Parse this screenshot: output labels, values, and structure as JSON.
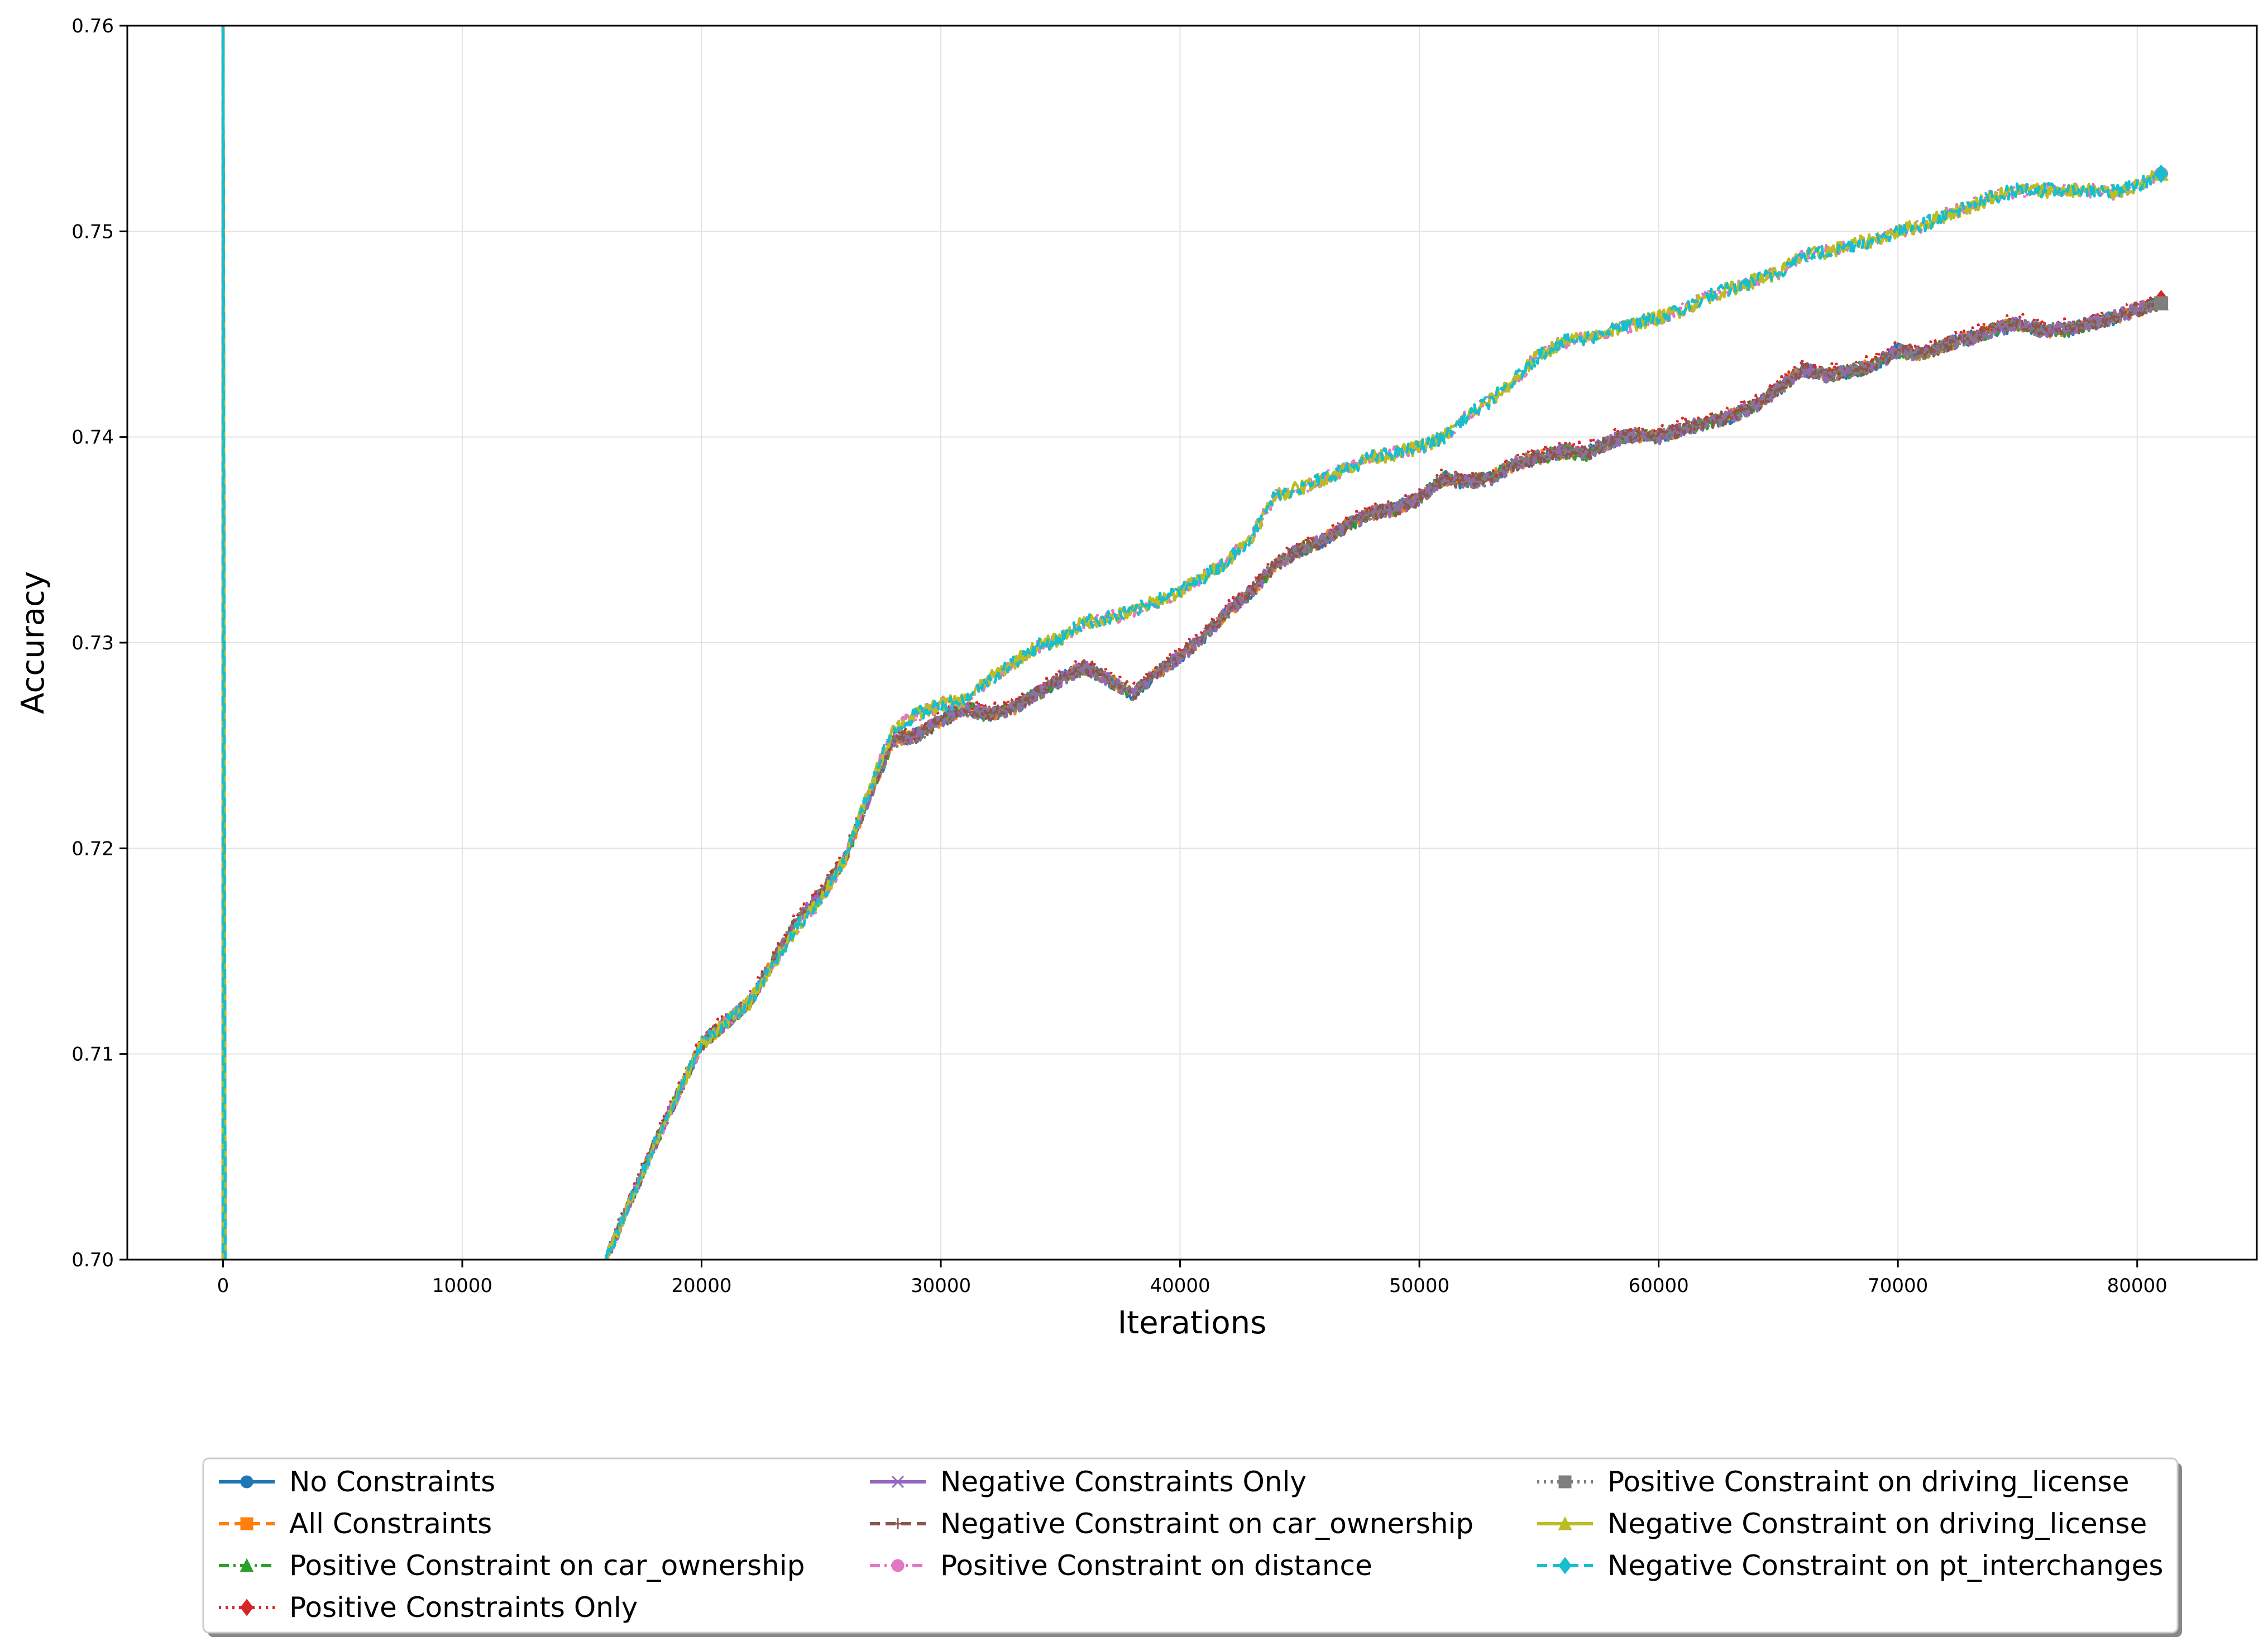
{
  "chart_data": {
    "type": "line",
    "title": "",
    "xlabel": "Iterations",
    "ylabel": "Accuracy",
    "xlim": [
      -4000,
      85000
    ],
    "ylim": [
      0.7,
      0.76
    ],
    "x_ticks": [
      0,
      10000,
      20000,
      30000,
      40000,
      50000,
      60000,
      70000,
      80000
    ],
    "x_tick_labels": [
      "0",
      "10000",
      "20000",
      "30000",
      "40000",
      "50000",
      "60000",
      "70000",
      "80000"
    ],
    "y_ticks": [
      0.7,
      0.71,
      0.72,
      0.73,
      0.74,
      0.75,
      0.76
    ],
    "y_tick_labels": [
      "0.70",
      "0.71",
      "0.72",
      "0.73",
      "0.74",
      "0.75",
      "0.76"
    ],
    "grid": true,
    "legend_position": "bottom-center, outside plot, 3 columns",
    "series": [
      {
        "name": "No Constraints",
        "color": "#1f77b4",
        "dash": "solid",
        "marker": "circle",
        "group": "A"
      },
      {
        "name": "All Constraints",
        "color": "#ff7f0e",
        "dash": "dashed",
        "marker": "square",
        "group": "A"
      },
      {
        "name": "Positive Constraint on car_ownership",
        "color": "#2ca02c",
        "dash": "dashdot",
        "marker": "triangle",
        "group": "A"
      },
      {
        "name": "Positive Constraints Only",
        "color": "#d62728",
        "dash": "dotted",
        "marker": "diamond",
        "group": "A"
      },
      {
        "name": "Negative Constraints Only",
        "color": "#9467bd",
        "dash": "solid",
        "marker": "x",
        "group": "A"
      },
      {
        "name": "Negative Constraint on car_ownership",
        "color": "#8c564b",
        "dash": "dashed",
        "marker": "plus",
        "group": "A"
      },
      {
        "name": "Positive Constraint on distance",
        "color": "#e377c2",
        "dash": "dashdot",
        "marker": "circle",
        "group": "B"
      },
      {
        "name": "Positive Constraint on driving_license",
        "color": "#7f7f7f",
        "dash": "dotted",
        "marker": "square",
        "group": "A"
      },
      {
        "name": "Negative Constraint on driving_license",
        "color": "#bcbd22",
        "dash": "solid",
        "marker": "triangle",
        "group": "B"
      },
      {
        "name": "Negative Constraint on pt_interchanges",
        "color": "#17becf",
        "dash": "dashed",
        "marker": "diamond",
        "group": "B"
      }
    ],
    "group_curves": {
      "A": {
        "x": [
          16000,
          18000,
          20000,
          22000,
          24000,
          25000,
          26000,
          27000,
          28000,
          29000,
          30000,
          31000,
          32000,
          33000,
          34000,
          35000,
          36000,
          37000,
          38000,
          39000,
          40000,
          41000,
          42000,
          43000,
          44000,
          45000,
          46000,
          47000,
          48000,
          49000,
          50000,
          51000,
          52000,
          53000,
          54000,
          55000,
          56000,
          57000,
          58000,
          59000,
          60000,
          61000,
          62000,
          63000,
          64000,
          65000,
          66000,
          67000,
          68000,
          69000,
          70000,
          71000,
          72000,
          73000,
          74000,
          75000,
          76000,
          77000,
          78000,
          79000,
          80000,
          81000
        ],
        "y": [
          0.7,
          0.7055,
          0.7105,
          0.7125,
          0.7165,
          0.7178,
          0.7195,
          0.7225,
          0.7252,
          0.7255,
          0.7262,
          0.7268,
          0.7265,
          0.7268,
          0.7275,
          0.7282,
          0.7288,
          0.7282,
          0.7275,
          0.7285,
          0.7293,
          0.7303,
          0.7315,
          0.7325,
          0.7338,
          0.7345,
          0.735,
          0.7357,
          0.7363,
          0.7365,
          0.737,
          0.738,
          0.7378,
          0.738,
          0.7387,
          0.739,
          0.7393,
          0.7392,
          0.7398,
          0.7401,
          0.74,
          0.7404,
          0.7407,
          0.741,
          0.7415,
          0.7423,
          0.7433,
          0.743,
          0.7432,
          0.7435,
          0.7442,
          0.744,
          0.7445,
          0.7448,
          0.7452,
          0.7455,
          0.7452,
          0.7452,
          0.7455,
          0.7458,
          0.7462,
          0.7465
        ]
      },
      "B": {
        "x": [
          16000,
          18000,
          20000,
          22000,
          24000,
          25000,
          26000,
          27000,
          28000,
          29000,
          30000,
          31000,
          32000,
          33000,
          34000,
          35000,
          36000,
          37000,
          38000,
          39000,
          40000,
          41000,
          42000,
          43000,
          44000,
          45000,
          46000,
          47000,
          48000,
          49000,
          50000,
          51000,
          52000,
          53000,
          54000,
          55000,
          56000,
          57000,
          58000,
          59000,
          60000,
          61000,
          62000,
          63000,
          64000,
          65000,
          66000,
          67000,
          68000,
          69000,
          70000,
          71000,
          72000,
          73000,
          74000,
          75000,
          76000,
          77000,
          78000,
          79000,
          80000,
          81000
        ],
        "y": [
          0.7,
          0.7055,
          0.7105,
          0.7125,
          0.7162,
          0.7175,
          0.7195,
          0.7228,
          0.7258,
          0.7265,
          0.727,
          0.7272,
          0.7282,
          0.729,
          0.7298,
          0.7302,
          0.731,
          0.7312,
          0.7315,
          0.732,
          0.7325,
          0.7332,
          0.734,
          0.7352,
          0.7372,
          0.7375,
          0.738,
          0.7385,
          0.739,
          0.7392,
          0.7395,
          0.74,
          0.741,
          0.7418,
          0.7428,
          0.744,
          0.7446,
          0.7448,
          0.7452,
          0.7455,
          0.7458,
          0.7462,
          0.7468,
          0.7472,
          0.7476,
          0.748,
          0.7488,
          0.749,
          0.7493,
          0.7496,
          0.75,
          0.7503,
          0.7508,
          0.7512,
          0.7517,
          0.752,
          0.752,
          0.752,
          0.752,
          0.7519,
          0.7522,
          0.7528
        ]
      }
    }
  }
}
